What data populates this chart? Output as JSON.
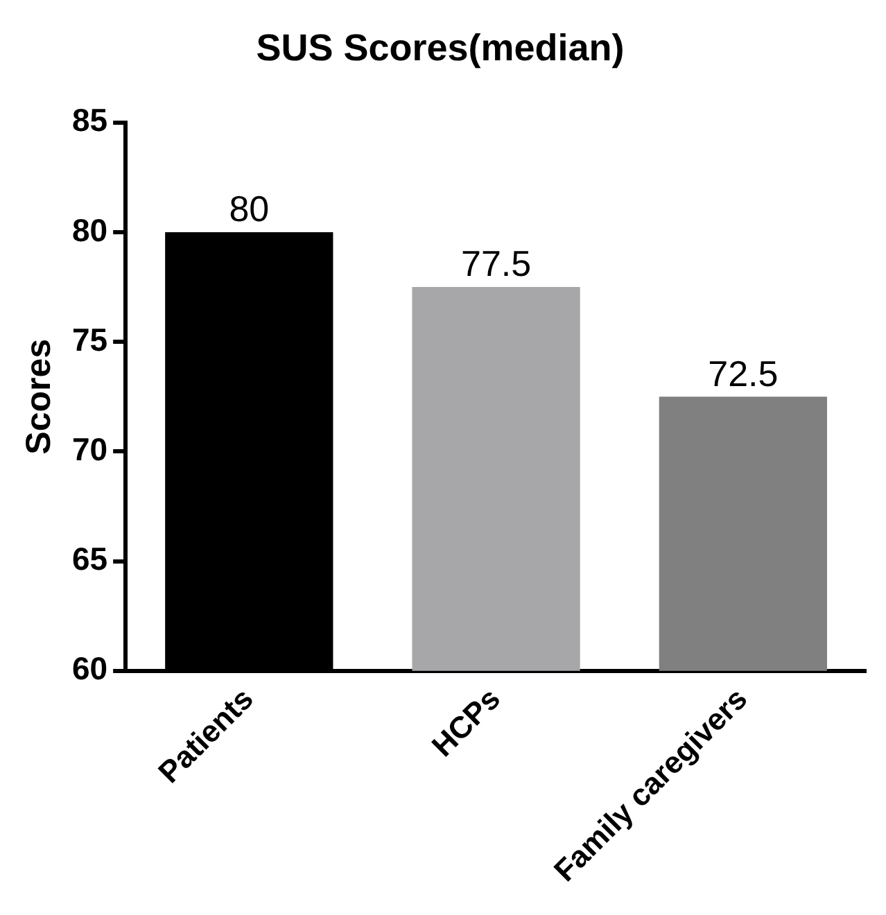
{
  "chart_data": {
    "type": "bar",
    "title": "SUS Scores(median)",
    "ylabel": "Scores",
    "categories": [
      "Patients",
      "HCPs",
      "Family caregivers"
    ],
    "values": [
      80,
      77.5,
      72.5
    ],
    "colors": [
      "#000000",
      "#a7a7aa",
      "#808080"
    ],
    "ylim": [
      60,
      85
    ],
    "yticks": [
      60,
      65,
      70,
      75,
      80,
      85
    ],
    "grid": false,
    "legend": false,
    "data_labels": true
  }
}
